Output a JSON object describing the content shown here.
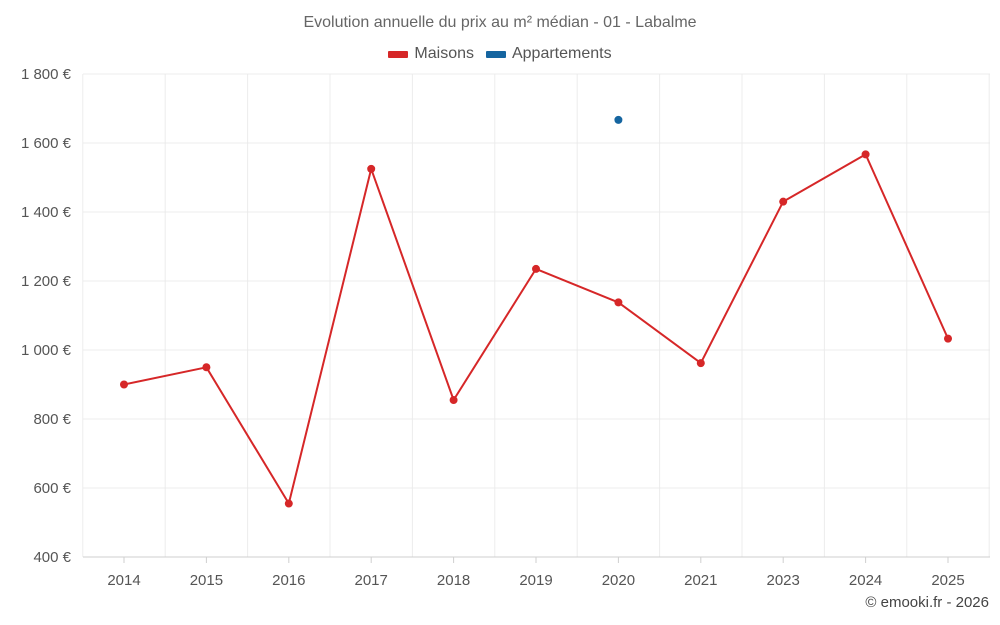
{
  "chart_data": {
    "type": "line",
    "title": "Evolution annuelle du prix au m² médian - 01 - Labalme",
    "categories": [
      "2014",
      "2015",
      "2016",
      "2017",
      "2018",
      "2019",
      "2020",
      "2021",
      "2023",
      "2024",
      "2025"
    ],
    "series": [
      {
        "name": "Maisons",
        "color": "#d62728",
        "values": [
          900,
          950,
          555,
          1525,
          855,
          1235,
          1138,
          962,
          1430,
          1567,
          1033
        ]
      },
      {
        "name": "Appartements",
        "color": "#1565a0",
        "values": [
          null,
          null,
          null,
          null,
          null,
          null,
          1667,
          null,
          null,
          null,
          null
        ]
      }
    ],
    "y_ticks": [
      "400 €",
      "600 €",
      "800 €",
      "1 000 €",
      "1 200 €",
      "1 400 €",
      "1 600 €",
      "1 800 €"
    ],
    "ylim": [
      400,
      1800
    ],
    "xlabel": "",
    "ylabel": "",
    "grid": true,
    "legend": "top-center"
  },
  "footer": {
    "credit": "© emooki.fr - 2026"
  }
}
